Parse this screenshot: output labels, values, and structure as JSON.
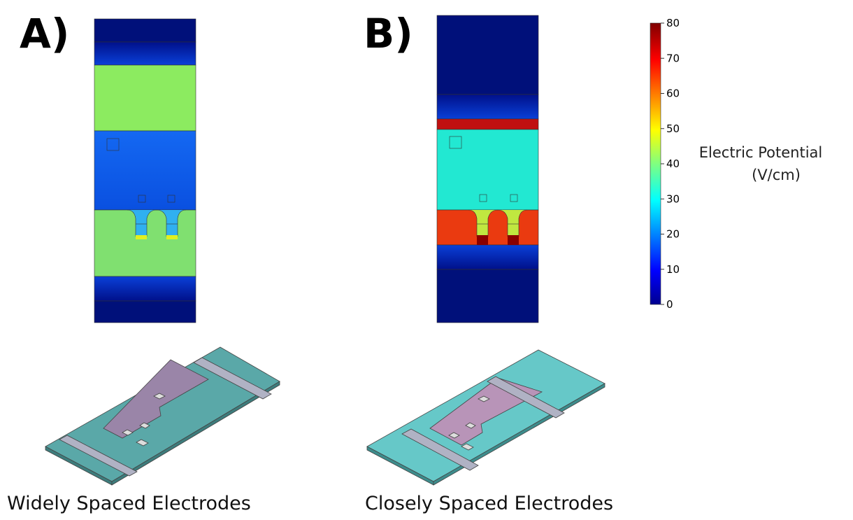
{
  "panels": [
    {
      "label": "A)",
      "caption": "Widely Spaced Electrodes"
    },
    {
      "label": "B)",
      "caption": "Closely Spaced Electrodes"
    }
  ],
  "colorbar": {
    "title_lines": [
      "Electric Potential",
      "(V/cm)"
    ],
    "lim": [
      0,
      80
    ],
    "ticks": [
      0,
      10,
      20,
      30,
      40,
      50,
      60,
      70,
      80
    ]
  }
}
